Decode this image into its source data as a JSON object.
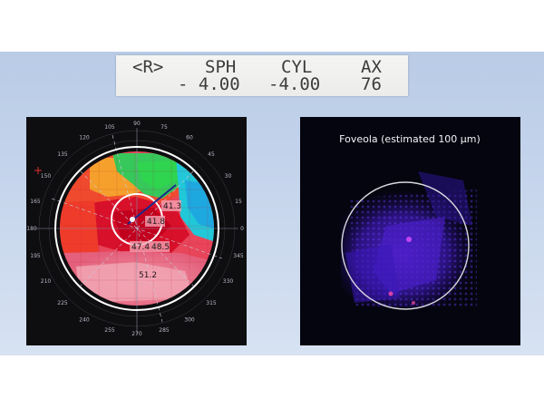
{
  "prescription": {
    "eye": "<R>",
    "headers": [
      "SPH",
      "CYL",
      "AX"
    ],
    "values": [
      "- 4.00",
      "-4.00",
      "76"
    ]
  },
  "topography": {
    "angle_labels": [
      "0",
      "15",
      "30",
      "45",
      "60",
      "75",
      "90",
      "105",
      "120",
      "135",
      "150",
      "165",
      "180",
      "195",
      "210",
      "225",
      "240",
      "255",
      "270",
      "285",
      "300",
      "315",
      "330",
      "345"
    ],
    "readings": [
      "41.3",
      "41.8",
      "47.4",
      "48.5",
      "51.2"
    ]
  },
  "foveola_image": {
    "caption": "Foveola (estimated 100 µm)"
  },
  "colors": {
    "background_band": "#c6d5ec",
    "ring": "#ffffff",
    "foveola_ring": "#d8d8e0"
  }
}
